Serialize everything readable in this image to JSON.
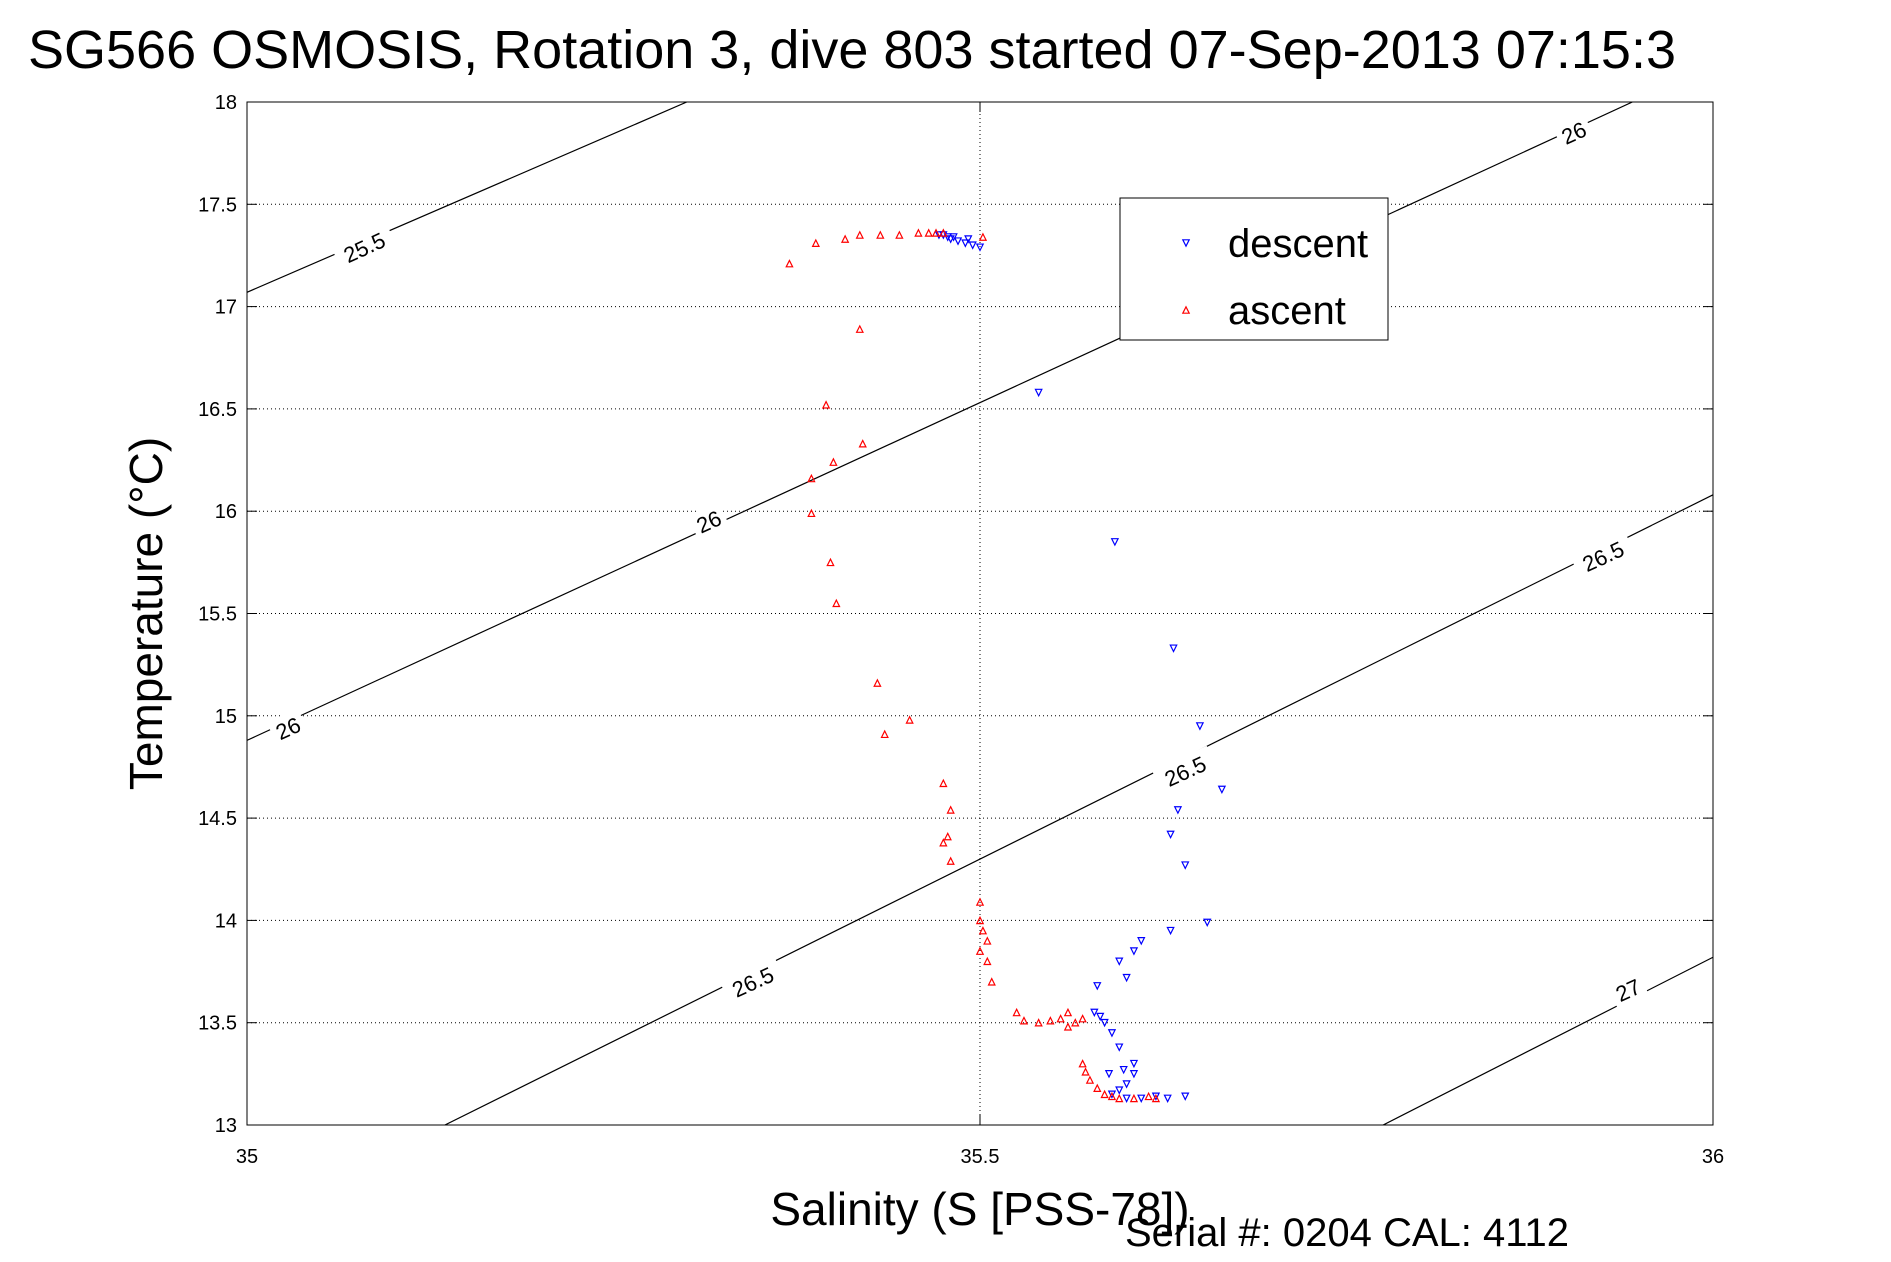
{
  "chart_data": {
    "type": "scatter",
    "title": "SG566 OSMOSIS, Rotation 3, dive 803 started 07-Sep-2013 07:15:3",
    "xlabel": "Salinity (S [PSS-78])",
    "ylabel": "Temperature (°C)",
    "xlim": [
      35,
      36
    ],
    "ylim": [
      13,
      18
    ],
    "xticks": [
      35,
      35.5,
      36
    ],
    "yticks": [
      13,
      13.5,
      14,
      14.5,
      15,
      15.5,
      16,
      16.5,
      17,
      17.5,
      18
    ],
    "xtick_labels": [
      "35",
      "35.5",
      "36"
    ],
    "ytick_labels": [
      "13",
      "13.5",
      "14",
      "14.5",
      "15",
      "15.5",
      "16",
      "16.5",
      "17",
      "17.5",
      "18"
    ],
    "grid": true,
    "legend_position": "top-right",
    "footer": "Serial #: 0204  CAL: 4112",
    "colors": {
      "descent": "#0000ff",
      "ascent": "#ff0000",
      "contour": "#000000"
    },
    "isopycnals": [
      {
        "label": "25.5",
        "points": [
          [
            35.0,
            17.07
          ],
          [
            35.3,
            18.0
          ]
        ]
      },
      {
        "label": "26",
        "points": [
          [
            35.0,
            14.88
          ],
          [
            35.945,
            18.0
          ]
        ]
      },
      {
        "label": "26.5",
        "points": [
          [
            35.135,
            13.0
          ],
          [
            36.0,
            16.08
          ]
        ]
      },
      {
        "label": "27",
        "points": [
          [
            35.775,
            13.0
          ],
          [
            36.0,
            13.82
          ]
        ]
      }
    ],
    "contour_labels": [
      {
        "text": "25.5",
        "at": [
          35.08,
          17.29
        ]
      },
      {
        "text": "26",
        "at": [
          35.028,
          14.94
        ]
      },
      {
        "text": "26",
        "at": [
          35.315,
          15.95
        ]
      },
      {
        "text": "26",
        "at": [
          35.905,
          17.85
        ]
      },
      {
        "text": "26.5",
        "at": [
          35.345,
          13.7
        ]
      },
      {
        "text": "26.5",
        "at": [
          35.64,
          14.73
        ]
      },
      {
        "text": "26.5",
        "at": [
          35.925,
          15.78
        ]
      },
      {
        "text": "27",
        "at": [
          35.942,
          13.66
        ]
      }
    ],
    "series": [
      {
        "name": "descent",
        "marker": "triangle-down",
        "points": [
          [
            35.475,
            17.35
          ],
          [
            35.48,
            17.33
          ],
          [
            35.482,
            17.34
          ],
          [
            35.485,
            17.32
          ],
          [
            35.49,
            17.31
          ],
          [
            35.495,
            17.3
          ],
          [
            35.5,
            17.29
          ],
          [
            35.492,
            17.33
          ],
          [
            35.478,
            17.34
          ],
          [
            35.472,
            17.35
          ],
          [
            35.54,
            16.58
          ],
          [
            35.592,
            15.85
          ],
          [
            35.632,
            15.33
          ],
          [
            35.65,
            14.95
          ],
          [
            35.665,
            14.64
          ],
          [
            35.635,
            14.54
          ],
          [
            35.63,
            14.42
          ],
          [
            35.64,
            14.27
          ],
          [
            35.63,
            13.95
          ],
          [
            35.655,
            13.99
          ],
          [
            35.61,
            13.9
          ],
          [
            35.605,
            13.85
          ],
          [
            35.595,
            13.8
          ],
          [
            35.6,
            13.72
          ],
          [
            35.58,
            13.68
          ],
          [
            35.578,
            13.55
          ],
          [
            35.582,
            13.53
          ],
          [
            35.585,
            13.5
          ],
          [
            35.59,
            13.45
          ],
          [
            35.595,
            13.38
          ],
          [
            35.605,
            13.3
          ],
          [
            35.598,
            13.27
          ],
          [
            35.588,
            13.25
          ],
          [
            35.6,
            13.2
          ],
          [
            35.595,
            13.17
          ],
          [
            35.59,
            13.15
          ],
          [
            35.6,
            13.13
          ],
          [
            35.61,
            13.13
          ],
          [
            35.62,
            13.14
          ],
          [
            35.628,
            13.13
          ],
          [
            35.64,
            13.14
          ],
          [
            35.605,
            13.25
          ]
        ]
      },
      {
        "name": "ascent",
        "marker": "triangle-up",
        "points": [
          [
            35.37,
            17.21
          ],
          [
            35.388,
            17.31
          ],
          [
            35.408,
            17.33
          ],
          [
            35.418,
            17.35
          ],
          [
            35.432,
            17.35
          ],
          [
            35.445,
            17.35
          ],
          [
            35.458,
            17.36
          ],
          [
            35.465,
            17.36
          ],
          [
            35.47,
            17.36
          ],
          [
            35.475,
            17.36
          ],
          [
            35.502,
            17.34
          ],
          [
            35.418,
            16.89
          ],
          [
            35.395,
            16.52
          ],
          [
            35.42,
            16.33
          ],
          [
            35.4,
            16.24
          ],
          [
            35.385,
            16.16
          ],
          [
            35.385,
            15.99
          ],
          [
            35.398,
            15.75
          ],
          [
            35.402,
            15.55
          ],
          [
            35.43,
            15.16
          ],
          [
            35.435,
            14.91
          ],
          [
            35.452,
            14.98
          ],
          [
            35.475,
            14.67
          ],
          [
            35.48,
            14.54
          ],
          [
            35.478,
            14.41
          ],
          [
            35.475,
            14.38
          ],
          [
            35.48,
            14.29
          ],
          [
            35.5,
            14.09
          ],
          [
            35.5,
            14.0
          ],
          [
            35.502,
            13.95
          ],
          [
            35.505,
            13.9
          ],
          [
            35.5,
            13.85
          ],
          [
            35.505,
            13.8
          ],
          [
            35.508,
            13.7
          ],
          [
            35.525,
            13.55
          ],
          [
            35.53,
            13.51
          ],
          [
            35.54,
            13.5
          ],
          [
            35.548,
            13.51
          ],
          [
            35.555,
            13.52
          ],
          [
            35.56,
            13.55
          ],
          [
            35.565,
            13.5
          ],
          [
            35.56,
            13.48
          ],
          [
            35.57,
            13.52
          ],
          [
            35.57,
            13.3
          ],
          [
            35.572,
            13.26
          ],
          [
            35.575,
            13.22
          ],
          [
            35.58,
            13.18
          ],
          [
            35.585,
            13.15
          ],
          [
            35.59,
            13.14
          ],
          [
            35.595,
            13.13
          ],
          [
            35.605,
            13.13
          ],
          [
            35.615,
            13.14
          ],
          [
            35.62,
            13.13
          ]
        ]
      }
    ]
  }
}
